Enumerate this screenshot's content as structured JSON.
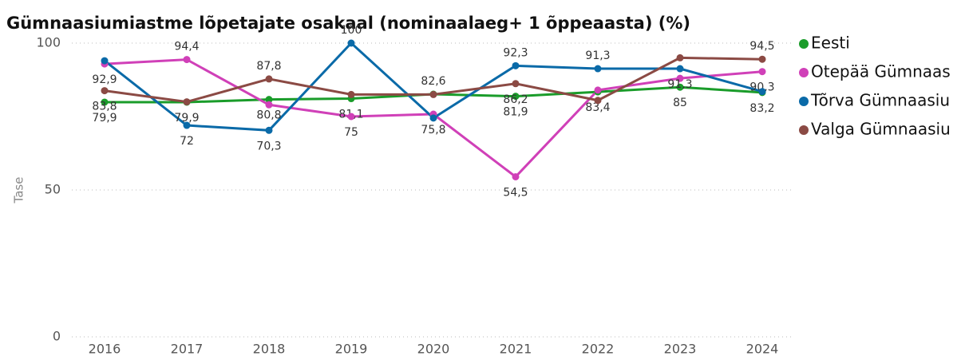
{
  "chart_data": {
    "type": "line",
    "title": "Gümnaasiumiastme lõpetajate osakaal (nominaalaeg+ 1 õppeaasta) (%)",
    "y_label": "Tase",
    "categories": [
      "2016",
      "2017",
      "2018",
      "2019",
      "2020",
      "2021",
      "2022",
      "2023",
      "2024"
    ],
    "ylim": [
      0,
      100
    ],
    "yticks": [
      0,
      50,
      100
    ],
    "grid": true,
    "legend": "right",
    "series": [
      {
        "name": "Eesti",
        "color": "#1a9c2a",
        "values": [
          79.9,
          79.9,
          80.8,
          81.1,
          82.6,
          81.9,
          83.4,
          85,
          83.2
        ],
        "value_labels": [
          "79,9",
          "79,9",
          "80,8",
          "81,1",
          "82,6",
          "81,9",
          "83,4",
          "85",
          "83,2"
        ]
      },
      {
        "name": "Otepää Gümnaas",
        "color": "#d040b8",
        "values": [
          92.9,
          94.4,
          79,
          75,
          75.8,
          54.5,
          84,
          88,
          90.3
        ],
        "value_labels": [
          "92,9",
          "94,4",
          null,
          "75",
          "75,8",
          "54,5",
          null,
          null,
          "90,3"
        ]
      },
      {
        "name": "Tõrva Gümnaasiu",
        "color": "#0a6aa8",
        "values": [
          94,
          72,
          70.3,
          100,
          74.5,
          92.3,
          91.3,
          91.3,
          83.5
        ],
        "value_labels": [
          null,
          "72",
          "70,3",
          "100",
          null,
          "92,3",
          "91,3",
          "91,3",
          null
        ]
      },
      {
        "name": "Valga Gümnaasiu",
        "color": "#8b4a44",
        "values": [
          83.8,
          80,
          87.8,
          82.5,
          82.5,
          86.2,
          80.5,
          95,
          94.5
        ],
        "value_labels": [
          "83,8",
          null,
          "87,8",
          null,
          null,
          "86,2",
          null,
          null,
          "94,5"
        ]
      }
    ]
  }
}
